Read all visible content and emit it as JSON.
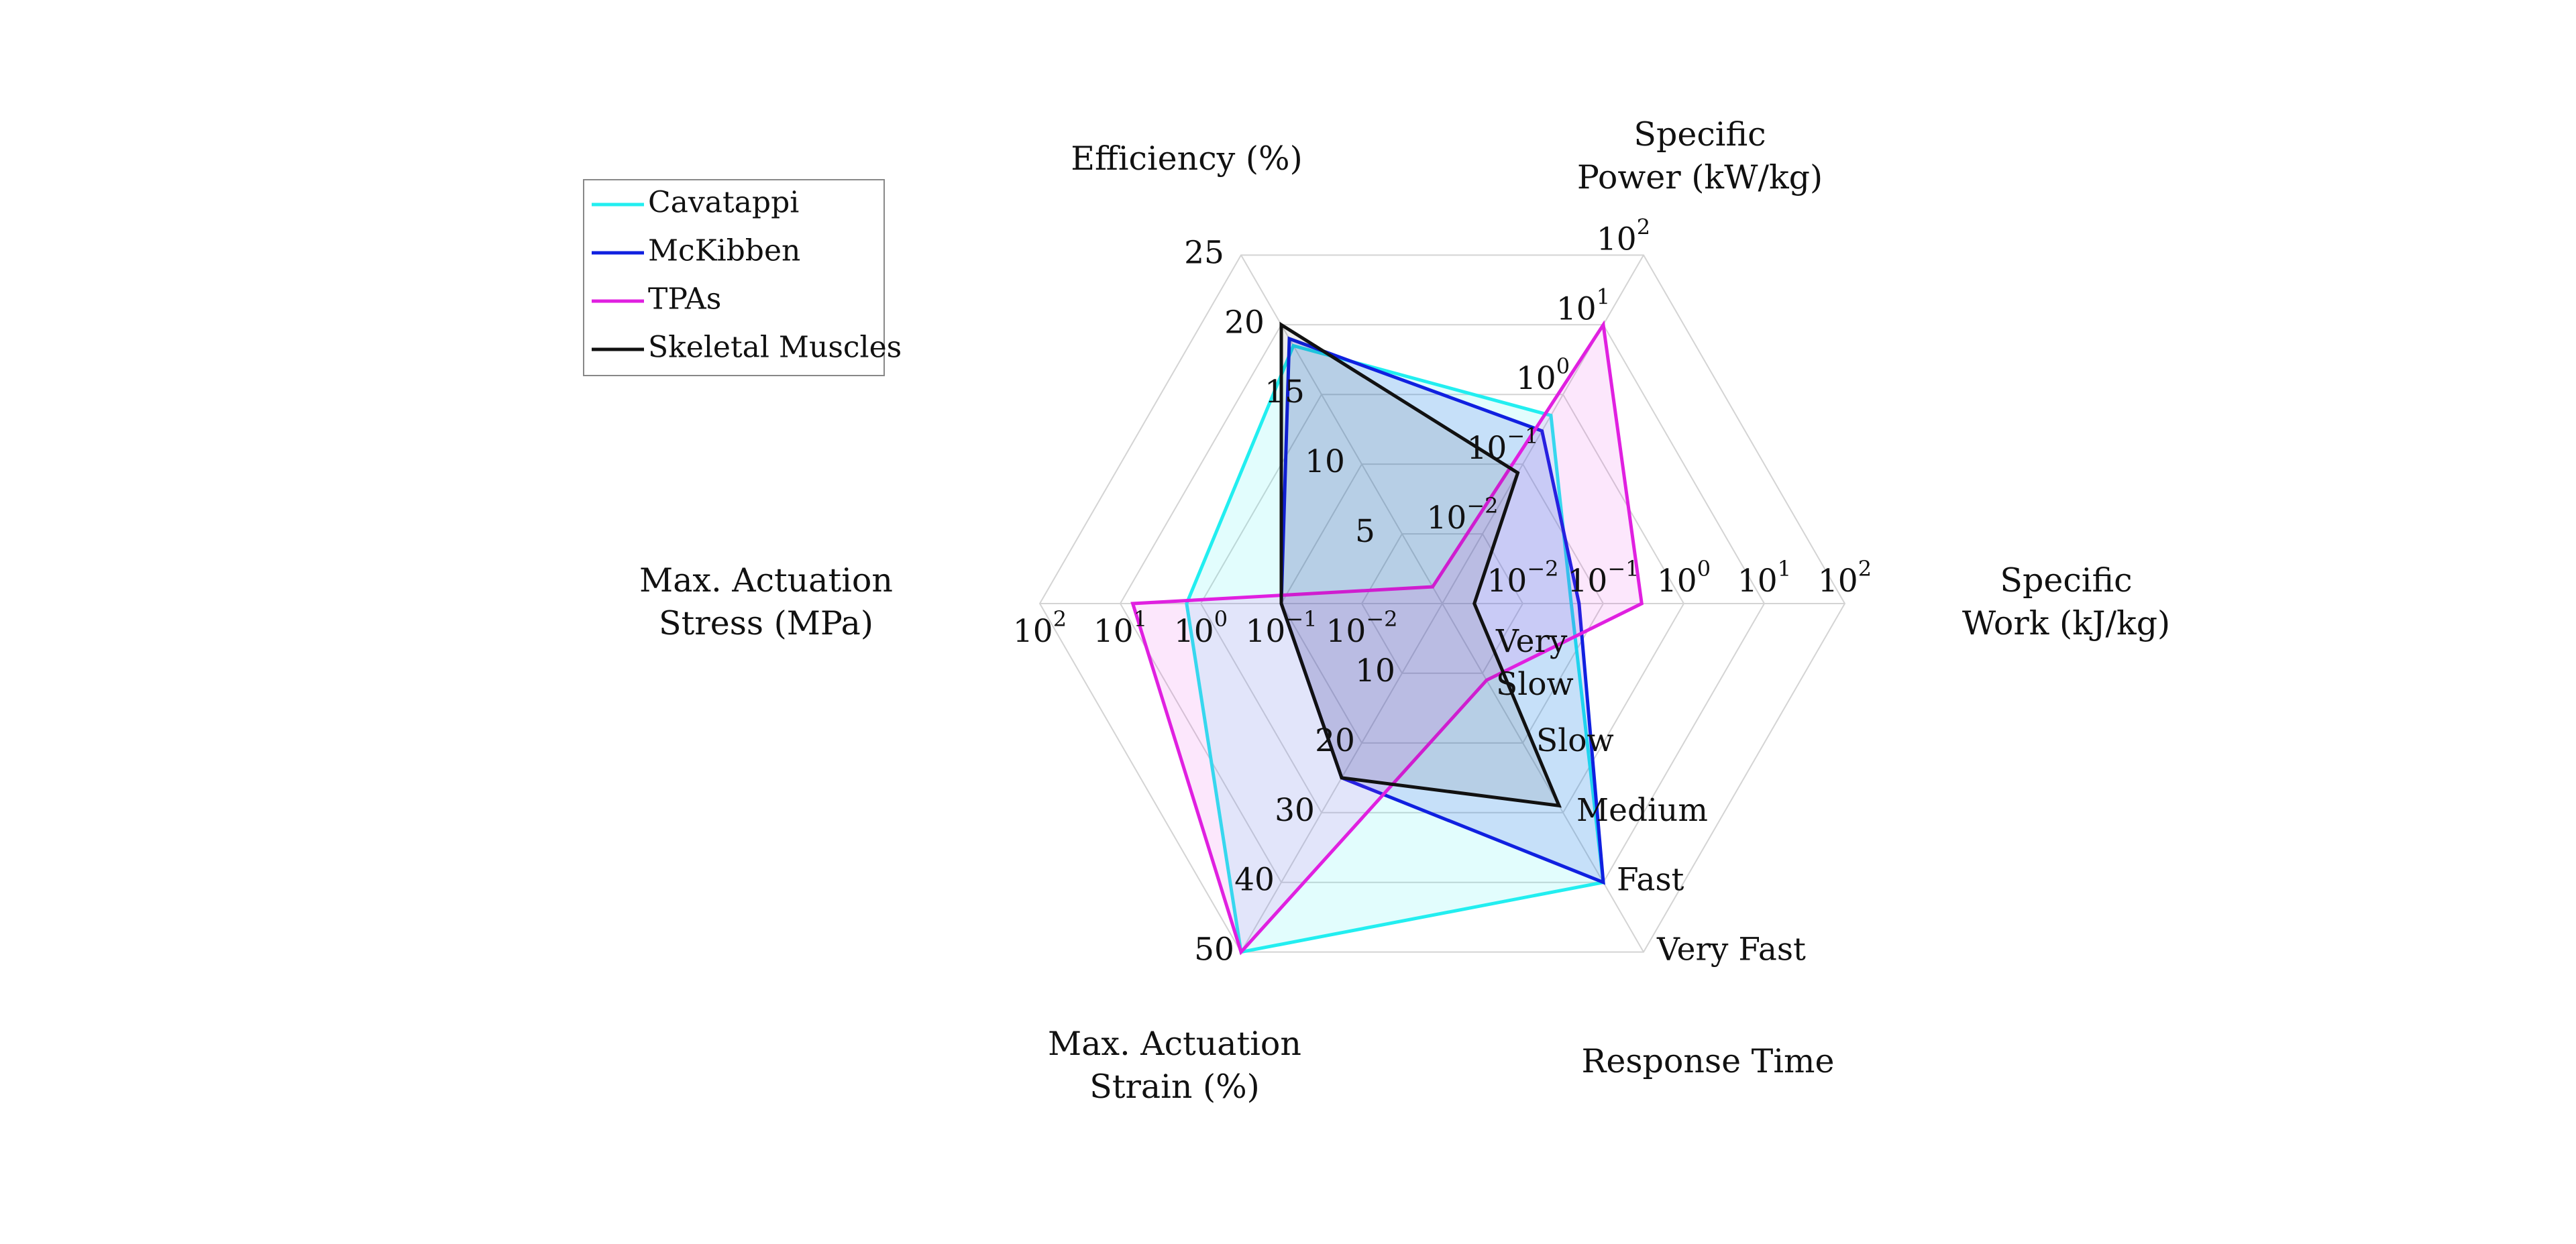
{
  "chart_data": {
    "type": "radar",
    "axes": [
      {
        "key": "efficiency",
        "title_lines": [
          "Efficiency (%)"
        ],
        "scale": "linear",
        "range": [
          0,
          25
        ],
        "ticks": [
          "5",
          "10",
          "15",
          "20",
          "25"
        ]
      },
      {
        "key": "specific_power",
        "title_lines": [
          "Specific",
          "Power (kW/kg)"
        ],
        "scale": "log",
        "range": [
          0.001,
          100
        ],
        "ticks": [
          {
            "base": "10",
            "exp": "−2"
          },
          {
            "base": "10",
            "exp": "−1"
          },
          {
            "base": "10",
            "exp": "0"
          },
          {
            "base": "10",
            "exp": "1"
          },
          {
            "base": "10",
            "exp": "2"
          }
        ]
      },
      {
        "key": "specific_work",
        "title_lines": [
          "Specific",
          "Work (kJ/kg)"
        ],
        "scale": "log",
        "range": [
          0.001,
          100
        ],
        "ticks": [
          {
            "base": "10",
            "exp": "−2"
          },
          {
            "base": "10",
            "exp": "−1"
          },
          {
            "base": "10",
            "exp": "0"
          },
          {
            "base": "10",
            "exp": "1"
          },
          {
            "base": "10",
            "exp": "2"
          }
        ]
      },
      {
        "key": "response_time",
        "title_lines": [
          "Response Time"
        ],
        "scale": "ordinal",
        "range": [
          0,
          5
        ],
        "ticks": [
          "Very\nSlow",
          "Slow",
          "Medium",
          "Fast",
          "Very Fast"
        ]
      },
      {
        "key": "max_actuation_strain",
        "title_lines": [
          "Max. Actuation",
          "Strain (%)"
        ],
        "scale": "linear",
        "range": [
          0,
          50
        ],
        "ticks": [
          "10",
          "20",
          "30",
          "40",
          "50"
        ]
      },
      {
        "key": "max_actuation_stress",
        "title_lines": [
          "Max. Actuation",
          "Stress (MPa)"
        ],
        "scale": "log",
        "range": [
          0.001,
          100
        ],
        "ticks": [
          {
            "base": "10",
            "exp": "−2"
          },
          {
            "base": "10",
            "exp": "−1"
          },
          {
            "base": "10",
            "exp": "0"
          },
          {
            "base": "10",
            "exp": "1"
          },
          {
            "base": "10",
            "exp": "2"
          }
        ]
      }
    ],
    "series": [
      {
        "name": "Cavatappi",
        "color": "#22eef0",
        "fill_opacity": 0.13,
        "values": {
          "efficiency": 18.5,
          "specific_power": 0.5,
          "specific_work": 0.04,
          "response_time": 4,
          "max_actuation_strain": 50,
          "max_actuation_stress": 1.5
        }
      },
      {
        "name": "McKibben",
        "color": "#1020e0",
        "fill_opacity": 0.13,
        "values": {
          "efficiency": 19,
          "specific_power": 0.3,
          "specific_work": 0.05,
          "response_time": 4,
          "max_actuation_strain": 25,
          "max_actuation_stress": 0.1
        }
      },
      {
        "name": "TPAs",
        "color": "#e020e0",
        "fill_opacity": 0.11,
        "values": {
          "efficiency": 1.2,
          "specific_power": 10,
          "specific_work": 0.3,
          "response_time": 1.1,
          "max_actuation_strain": 50,
          "max_actuation_stress": 7
        }
      },
      {
        "name": "Skeletal Muscles",
        "color": "#111111",
        "fill_opacity": 0.08,
        "values": {
          "efficiency": 20,
          "specific_power": 0.075,
          "specific_work": 0.0025,
          "response_time": 2.9,
          "max_actuation_strain": 25,
          "max_actuation_stress": 0.1
        }
      }
    ],
    "grid": true,
    "legend": {
      "placement": "top-left",
      "entries": [
        "Cavatappi",
        "McKibben",
        "TPAs",
        "Skeletal Muscles"
      ]
    }
  }
}
